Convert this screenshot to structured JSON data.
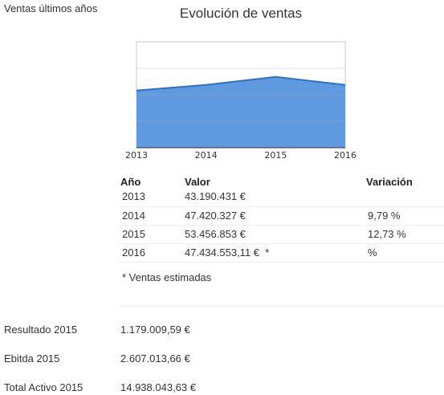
{
  "side_title": "Ventas últimos años",
  "chart_title": "Evolución de ventas",
  "chart_data": {
    "type": "area",
    "title": "Evolución de ventas",
    "categories": [
      "2013",
      "2014",
      "2015",
      "2016"
    ],
    "series": [
      {
        "values": [
          43190431,
          47420327,
          53456853,
          47434553.11
        ]
      }
    ],
    "ylim": [
      0,
      80000000
    ],
    "grid": true,
    "colors": {
      "fill": "#5f9ae0",
      "line": "#2f6fc8",
      "grid": "#aaaaaa",
      "border": "#c8c8c8"
    }
  },
  "table": {
    "headers": {
      "year": "Año",
      "value": "Valor",
      "variation": "Variación"
    },
    "rows": [
      {
        "year": "2013",
        "value": "43.190.431 €",
        "variation": ""
      },
      {
        "year": "2014",
        "value": "47.420.327 €",
        "variation": "9,79 %"
      },
      {
        "year": "2015",
        "value": "53.456.853 €",
        "variation": "12,73 %"
      },
      {
        "year": "2016",
        "value": "47.434.553,11 €  *",
        "variation": "%"
      }
    ],
    "note": "* Ventas estimadas"
  },
  "financials": [
    {
      "label": "Resultado 2015",
      "value": "1.179.009,59 €"
    },
    {
      "label": "Ebitda 2015",
      "value": "2.607.013,66 €"
    },
    {
      "label": "Total Activo 2015",
      "value": "14.938.043,63 €"
    }
  ]
}
